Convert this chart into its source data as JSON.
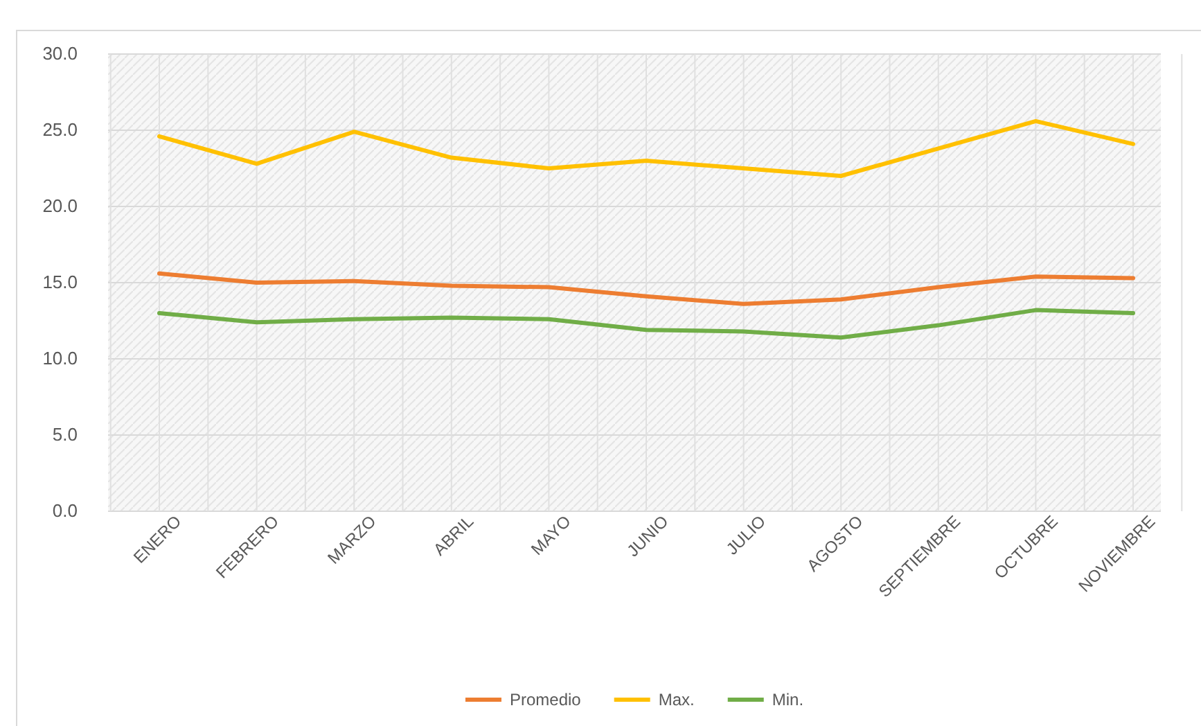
{
  "chart_data": {
    "type": "line",
    "categories": [
      "ENERO",
      "FEBRERO",
      "MARZO",
      "ABRIL",
      "MAYO",
      "JUNIO",
      "JULIO",
      "AGOSTO",
      "SEPTIEMBRE",
      "OCTUBRE",
      "NOVIEMBRE"
    ],
    "series": [
      {
        "name": "Promedio",
        "color": "#ed7d31",
        "values": [
          15.6,
          15.0,
          15.1,
          14.8,
          14.7,
          14.1,
          13.6,
          13.9,
          14.7,
          15.4,
          15.3
        ]
      },
      {
        "name": "Max.",
        "color": "#ffc000",
        "values": [
          24.6,
          22.8,
          24.9,
          23.2,
          22.5,
          23.0,
          22.5,
          22.0,
          23.8,
          25.6,
          24.1
        ]
      },
      {
        "name": "Min.",
        "color": "#70ad47",
        "values": [
          13.0,
          12.4,
          12.6,
          12.7,
          12.6,
          11.9,
          11.8,
          11.4,
          12.2,
          13.2,
          13.0
        ]
      }
    ],
    "ylim": [
      0,
      30
    ],
    "yticks": [
      {
        "value": 0,
        "label": "0.0"
      },
      {
        "value": 5,
        "label": "5.0"
      },
      {
        "value": 10,
        "label": "10.0"
      },
      {
        "value": 15,
        "label": "15.0"
      },
      {
        "value": 20,
        "label": "20.0"
      },
      {
        "value": 25,
        "label": "25.0"
      },
      {
        "value": 30,
        "label": "30.0"
      }
    ],
    "grid": true,
    "legend": "bottom",
    "marker": "none",
    "line_style": "solid"
  }
}
